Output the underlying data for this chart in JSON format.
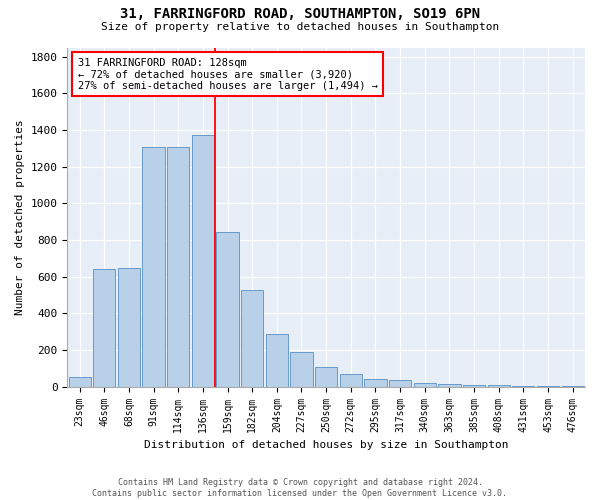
{
  "title": "31, FARRINGFORD ROAD, SOUTHAMPTON, SO19 6PN",
  "subtitle": "Size of property relative to detached houses in Southampton",
  "xlabel": "Distribution of detached houses by size in Southampton",
  "ylabel": "Number of detached properties",
  "bar_color": "#b8d0e8",
  "bar_edge_color": "#6699cc",
  "bg_color": "#e8eef8",
  "categories": [
    "23sqm",
    "46sqm",
    "68sqm",
    "91sqm",
    "114sqm",
    "136sqm",
    "159sqm",
    "182sqm",
    "204sqm",
    "227sqm",
    "250sqm",
    "272sqm",
    "295sqm",
    "317sqm",
    "340sqm",
    "363sqm",
    "385sqm",
    "408sqm",
    "431sqm",
    "453sqm",
    "476sqm"
  ],
  "values": [
    55,
    640,
    645,
    1305,
    1310,
    1375,
    845,
    530,
    285,
    190,
    110,
    68,
    40,
    35,
    22,
    15,
    10,
    8,
    5,
    3,
    2
  ],
  "vline_x": 5.5,
  "annotation_text": "31 FARRINGFORD ROAD: 128sqm\n← 72% of detached houses are smaller (3,920)\n27% of semi-detached houses are larger (1,494) →",
  "annotation_box_color": "white",
  "annotation_box_edge_color": "red",
  "vline_color": "red",
  "ylim": [
    0,
    1850
  ],
  "yticks": [
    0,
    200,
    400,
    600,
    800,
    1000,
    1200,
    1400,
    1600,
    1800
  ],
  "figsize": [
    6.0,
    5.0
  ],
  "dpi": 100,
  "footer_line1": "Contains HM Land Registry data © Crown copyright and database right 2024.",
  "footer_line2": "Contains public sector information licensed under the Open Government Licence v3.0."
}
